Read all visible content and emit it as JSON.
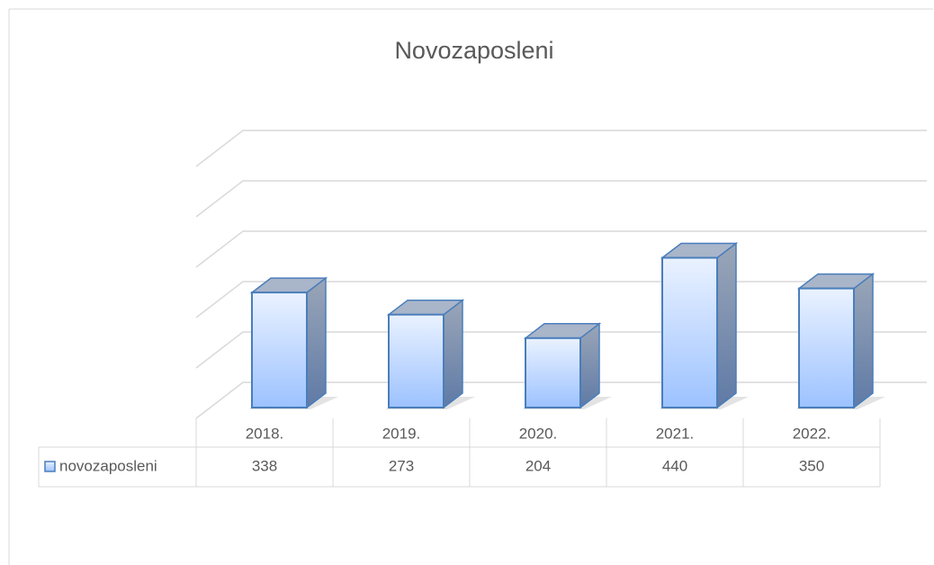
{
  "chart_data": {
    "type": "bar3d",
    "title": "Novozaposleni",
    "categories": [
      "2018.",
      "2019.",
      "2020.",
      "2021.",
      "2022."
    ],
    "series": [
      {
        "name": "novozaposleni",
        "color": "#4a7ebb",
        "values": [
          338,
          273,
          204,
          440,
          350
        ]
      }
    ],
    "ylim": [
      0,
      500
    ],
    "yticks": [
      0,
      100,
      200,
      300,
      400,
      500
    ],
    "grid": true,
    "data_table": true
  }
}
